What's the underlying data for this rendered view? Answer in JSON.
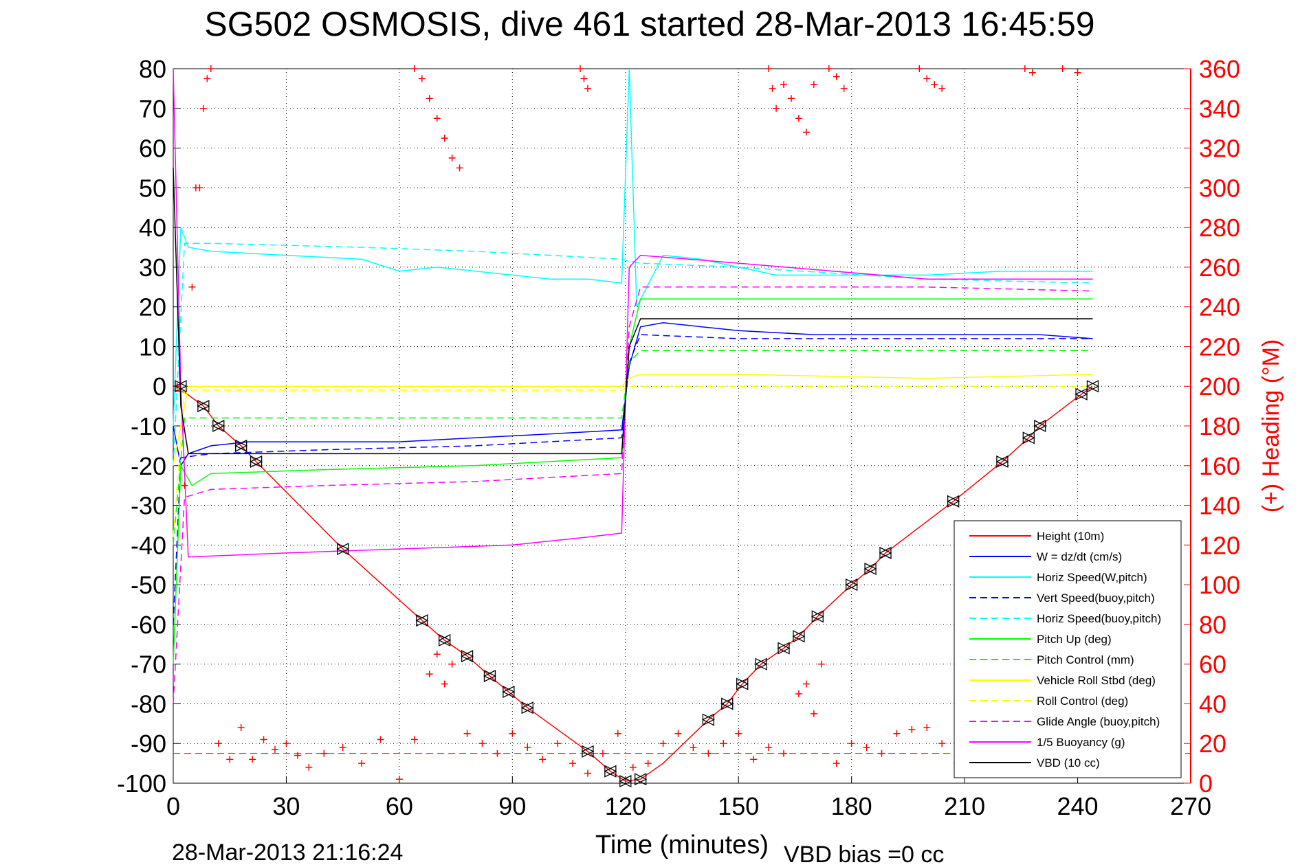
{
  "chart_data": {
    "type": "line",
    "title": "SG502 OSMOSIS, dive 461 started 28-Mar-2013 16:45:59",
    "xlabel": "Time (minutes)",
    "ylabel": "",
    "ylabel_right": "(+) Heading (°M)",
    "xlim": [
      0,
      270
    ],
    "ylim": [
      -100,
      80
    ],
    "ylim_right": [
      0,
      360
    ],
    "xticks": [
      "0",
      "30",
      "60",
      "90",
      "120",
      "150",
      "180",
      "210",
      "240",
      "270"
    ],
    "yticks": [
      "80",
      "70",
      "60",
      "50",
      "40",
      "30",
      "20",
      "10",
      "0",
      "-10",
      "-20",
      "-30",
      "-40",
      "-50",
      "-60",
      "-70",
      "-80",
      "-90",
      "-100"
    ],
    "yticks_right": [
      "360",
      "340",
      "320",
      "300",
      "280",
      "260",
      "240",
      "220",
      "200",
      "180",
      "160",
      "140",
      "120",
      "100",
      "80",
      "60",
      "40",
      "20",
      "0"
    ],
    "grid": true,
    "legend_position": "bottom-right",
    "footer_left": "28-Mar-2013 21:16:24",
    "footer_right": "VBD bias =0 cc",
    "series": [
      {
        "name": "Height (10m)",
        "color": "#ff0000",
        "style": "solid",
        "x": [
          0,
          3,
          8,
          12,
          18,
          22,
          45,
          66,
          72,
          78,
          84,
          89,
          94,
          110,
          116,
          120,
          124,
          130,
          142,
          147,
          151,
          156,
          162,
          166,
          171,
          180,
          185,
          189,
          207,
          220,
          227,
          230,
          241,
          244
        ],
        "y": [
          -1,
          -1.5,
          -5,
          -10,
          -15,
          -19,
          -41,
          -59,
          -64,
          -68,
          -73,
          -77,
          -81,
          -92,
          -97,
          -99.5,
          -99,
          -95,
          -84,
          -80,
          -75,
          -70,
          -66,
          -63,
          -58,
          -50,
          -46,
          -42,
          -29,
          -19,
          -13,
          -10,
          -2,
          0
        ]
      },
      {
        "name": "W = dz/dt (cm/s)",
        "color": "#0000ff",
        "style": "solid",
        "x": [
          0,
          2,
          4,
          10,
          20,
          40,
          60,
          80,
          100,
          119,
          121,
          124,
          130,
          150,
          170,
          200,
          230,
          244
        ],
        "y": [
          -10,
          -20,
          -17,
          -15,
          -14,
          -14,
          -14,
          -13,
          -12,
          -11,
          5,
          15,
          16,
          14,
          13,
          13,
          13,
          12
        ]
      },
      {
        "name": "Horiz Speed(W,pitch)",
        "color": "#00ffff",
        "style": "solid",
        "x": [
          0,
          2,
          4,
          10,
          30,
          50,
          60,
          70,
          90,
          100,
          110,
          119,
          121,
          123,
          130,
          140,
          150,
          160,
          180,
          200,
          220,
          244
        ],
        "y": [
          -10,
          40,
          35,
          34,
          33,
          32,
          29,
          30,
          28,
          27,
          27,
          26,
          80,
          20,
          33,
          32,
          30,
          28,
          28,
          28,
          29,
          29
        ]
      },
      {
        "name": "Vert Speed(buoy,pitch)",
        "color": "#0000ff",
        "style": "dashed",
        "x": [
          0,
          2,
          10,
          40,
          80,
          119,
          121,
          124,
          150,
          200,
          244
        ],
        "y": [
          -60,
          -18,
          -17,
          -16,
          -15,
          -13,
          6,
          13,
          12,
          12,
          12
        ]
      },
      {
        "name": "Horiz Speed(buoy,pitch)",
        "color": "#00ffff",
        "style": "dashed",
        "x": [
          0,
          3,
          10,
          50,
          80,
          100,
          119,
          124,
          150,
          200,
          244
        ],
        "y": [
          -20,
          36,
          36,
          35,
          34,
          33,
          32,
          31,
          30,
          27,
          26
        ]
      },
      {
        "name": "Pitch Up (deg)",
        "color": "#00ff00",
        "style": "solid",
        "x": [
          0,
          2,
          5,
          10,
          40,
          80,
          119,
          121,
          124,
          150,
          200,
          244
        ],
        "y": [
          -70,
          -20,
          -25,
          -22,
          -21,
          -20,
          -18,
          10,
          22,
          22,
          22,
          22
        ]
      },
      {
        "name": "Pitch Control (mm)",
        "color": "#00ff00",
        "style": "dashed",
        "x": [
          0,
          3,
          10,
          40,
          80,
          119,
          121,
          124,
          150,
          200,
          244
        ],
        "y": [
          -40,
          -8,
          -8,
          -8,
          -8,
          -8,
          6,
          9,
          9,
          9,
          9
        ]
      },
      {
        "name": "Vehicle Roll Stbd (deg)",
        "color": "#ffff00",
        "style": "solid",
        "x": [
          0,
          4,
          10,
          40,
          80,
          119,
          121,
          124,
          150,
          200,
          244
        ],
        "y": [
          -20,
          0,
          0,
          0,
          0,
          0,
          2,
          3,
          3,
          2,
          3
        ]
      },
      {
        "name": "Roll Control (deg)",
        "color": "#ffff00",
        "style": "dashed",
        "x": [
          0,
          3,
          10,
          40,
          80,
          119,
          121,
          124,
          150,
          200,
          244
        ],
        "y": [
          -38,
          -1,
          -1,
          -1,
          -1,
          -1,
          0,
          0,
          0,
          0,
          0
        ]
      },
      {
        "name": "Glide Angle (buoy,pitch)",
        "color": "#ff00ff",
        "style": "dashed",
        "x": [
          0,
          3,
          10,
          40,
          80,
          119,
          121,
          124,
          150,
          200,
          244
        ],
        "y": [
          -80,
          -28,
          -26,
          -25,
          -24,
          -22,
          15,
          25,
          25,
          25,
          24
        ]
      },
      {
        "name": "1/5 Buoyancy (g)",
        "color": "#ff00ff",
        "style": "solid",
        "x": [
          0,
          2,
          4,
          30,
          60,
          90,
          110,
          119,
          121,
          124,
          150,
          200,
          244
        ],
        "y": [
          80,
          0,
          -43,
          -42,
          -41,
          -40,
          -38,
          -37,
          30,
          33,
          31,
          27,
          27
        ]
      },
      {
        "name": "VBD (10 cc)",
        "color": "#000000",
        "style": "solid",
        "x": [
          0,
          2,
          4,
          30,
          60,
          90,
          119,
          121,
          124,
          150,
          200,
          244
        ],
        "y": [
          55,
          -5,
          -17,
          -17,
          -17,
          -17,
          -17,
          10,
          17,
          17,
          17,
          17
        ]
      }
    ],
    "heading": {
      "name": "Heading (°M)",
      "color": "#ff0000",
      "marker": "+",
      "axis": "right",
      "x": [
        1,
        3,
        5,
        6,
        7,
        8,
        9,
        10,
        12,
        15,
        18,
        21,
        24,
        27,
        30,
        33,
        36,
        40,
        45,
        50,
        55,
        60,
        64,
        68,
        70,
        72,
        74,
        78,
        82,
        86,
        90,
        94,
        98,
        102,
        106,
        110,
        114,
        118,
        122,
        126,
        130,
        134,
        138,
        142,
        146,
        150,
        154,
        158,
        162,
        166,
        168,
        170,
        172,
        176,
        180,
        184,
        188,
        192,
        196,
        200,
        204,
        208,
        212,
        216,
        220,
        226,
        232,
        238,
        244
      ],
      "y": [
        200,
        150,
        250,
        300,
        300,
        340,
        355,
        360,
        20,
        12,
        28,
        12,
        22,
        17,
        20,
        14,
        8,
        15,
        18,
        10,
        22,
        2,
        22,
        55,
        65,
        50,
        60,
        25,
        20,
        15,
        25,
        18,
        12,
        20,
        10,
        5,
        15,
        25,
        8,
        10,
        20,
        25,
        18,
        15,
        20,
        25,
        12,
        18,
        15,
        45,
        50,
        35,
        60,
        10,
        20,
        18,
        15,
        25,
        27,
        28,
        20,
        10,
        15,
        20,
        25,
        10,
        18,
        15,
        20
      ]
    },
    "heading_top": {
      "x": [
        64,
        66,
        68,
        70,
        72,
        74,
        76,
        108,
        109,
        110,
        158,
        159,
        160,
        162,
        164,
        166,
        168,
        170,
        174,
        176,
        178,
        198,
        200,
        202,
        204,
        226,
        228,
        236,
        240
      ],
      "y": [
        360,
        355,
        345,
        335,
        325,
        315,
        310,
        360,
        355,
        350,
        360,
        350,
        340,
        352,
        345,
        335,
        328,
        352,
        360,
        356,
        350,
        360,
        355,
        352,
        350,
        360,
        358,
        360,
        358
      ]
    },
    "vertex_markers": {
      "x": [
        2,
        8,
        12,
        18,
        22,
        45,
        66,
        72,
        78,
        84,
        89,
        94,
        110,
        116,
        120,
        124,
        142,
        147,
        151,
        156,
        162,
        166,
        171,
        180,
        185,
        189,
        207,
        220,
        227,
        230,
        241,
        244
      ],
      "y": [
        0,
        -5,
        -10,
        -15,
        -19,
        -41,
        -59,
        -64,
        -68,
        -73,
        -77,
        -81,
        -92,
        -97,
        -99.5,
        -99,
        -84,
        -80,
        -75,
        -70,
        -66,
        -63,
        -58,
        -50,
        -46,
        -42,
        -29,
        -19,
        -13,
        -10,
        -2,
        0
      ]
    }
  }
}
